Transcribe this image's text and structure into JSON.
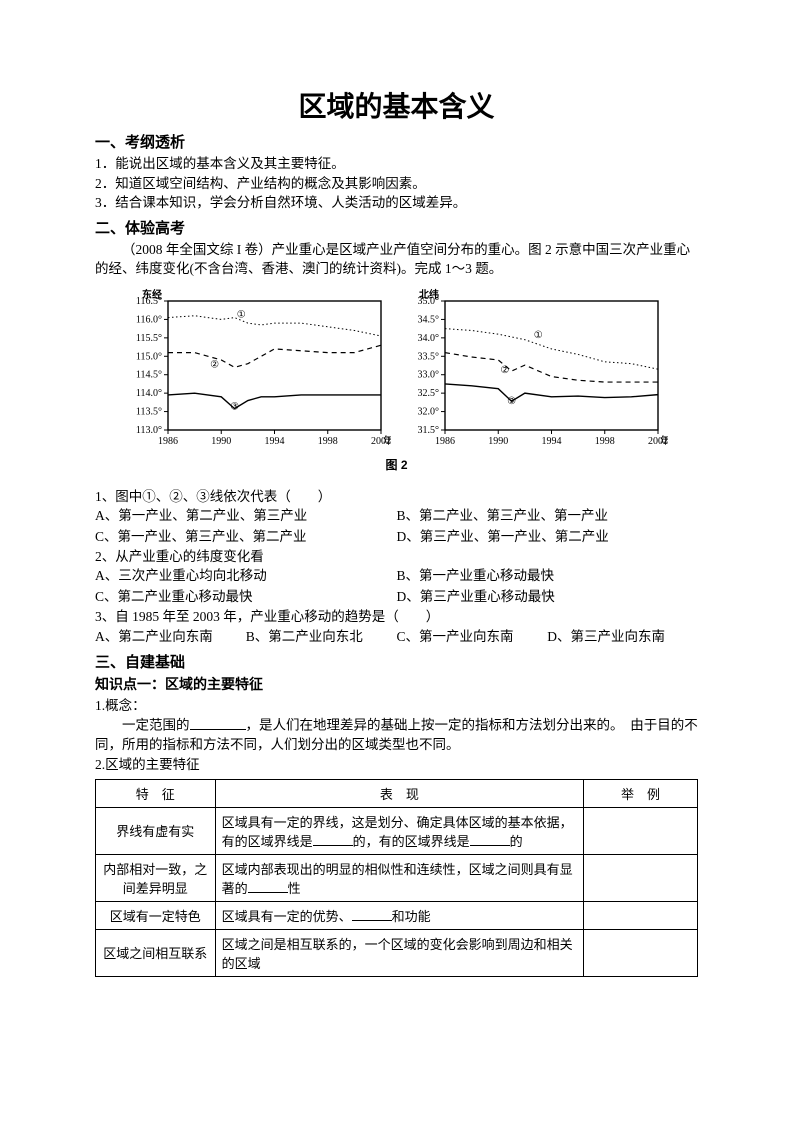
{
  "title": "区域的基本含义",
  "sections": {
    "s1": {
      "heading": "一、考纲透析",
      "items": [
        "1．能说出区域的基本含义及其主要特征。",
        "2．知道区域空间结构、产业结构的概念及其影响因素。",
        "3．结合课本知识，学会分析自然环境、人类活动的区域差异。"
      ]
    },
    "s2": {
      "heading": "二、体验高考",
      "intro": "（2008 年全国文综 I 卷）产业重心是区域产业产值空间分布的重心。图 2 示意中国三次产业重心的经、纬度变化(不含台湾、香港、澳门的统计资料)。完成 1～3 题。",
      "fig_caption": "图 2",
      "charts": {
        "left": {
          "ylabel": "东经",
          "y_ticks": [
            "116.5°",
            "116.0°",
            "115.5°",
            "115.0°",
            "114.5°",
            "114.0°",
            "113.5°",
            "113.0°"
          ],
          "ylim": [
            113.0,
            116.5
          ],
          "x_ticks": [
            "1986",
            "1990",
            "1994",
            "1998",
            "2002"
          ],
          "xlim": [
            1986,
            2002
          ],
          "xlabel": "年份",
          "axis_color": "#000000",
          "grid_color": "#dddddd",
          "label_fontsize": 10,
          "series": [
            {
              "name": "①",
              "style": "dotted",
              "stroke": "#000000",
              "width": 1,
              "data": [
                [
                  1986,
                  116.05
                ],
                [
                  1988,
                  116.1
                ],
                [
                  1990,
                  116.0
                ],
                [
                  1991,
                  116.05
                ],
                [
                  1992,
                  115.9
                ],
                [
                  1993,
                  115.85
                ],
                [
                  1994,
                  115.9
                ],
                [
                  1996,
                  115.9
                ],
                [
                  1998,
                  115.8
                ],
                [
                  2000,
                  115.7
                ],
                [
                  2002,
                  115.55
                ]
              ],
              "label_pos": [
                1991.5,
                116.05
              ]
            },
            {
              "name": "②",
              "style": "dashed",
              "stroke": "#000000",
              "width": 1.2,
              "data": [
                [
                  1986,
                  115.1
                ],
                [
                  1988,
                  115.1
                ],
                [
                  1990,
                  114.9
                ],
                [
                  1991,
                  114.7
                ],
                [
                  1992,
                  114.8
                ],
                [
                  1993,
                  115.0
                ],
                [
                  1994,
                  115.2
                ],
                [
                  1996,
                  115.15
                ],
                [
                  1998,
                  115.1
                ],
                [
                  2000,
                  115.1
                ],
                [
                  2002,
                  115.3
                ]
              ],
              "label_pos": [
                1989.5,
                114.7
              ]
            },
            {
              "name": "③",
              "style": "solid",
              "stroke": "#000000",
              "width": 1.4,
              "data": [
                [
                  1986,
                  113.95
                ],
                [
                  1988,
                  114.0
                ],
                [
                  1990,
                  113.9
                ],
                [
                  1991,
                  113.58
                ],
                [
                  1992,
                  113.8
                ],
                [
                  1993,
                  113.9
                ],
                [
                  1994,
                  113.9
                ],
                [
                  1996,
                  113.95
                ],
                [
                  1998,
                  113.95
                ],
                [
                  2000,
                  113.95
                ],
                [
                  2002,
                  113.95
                ]
              ],
              "label_pos": [
                1991,
                113.55
              ]
            }
          ]
        },
        "right": {
          "ylabel": "北纬",
          "y_ticks": [
            "35.0°",
            "34.5°",
            "34.0°",
            "33.5°",
            "33.0°",
            "32.5°",
            "32.0°",
            "31.5°"
          ],
          "ylim": [
            31.5,
            35.0
          ],
          "x_ticks": [
            "1986",
            "1990",
            "1994",
            "1998",
            "2002"
          ],
          "xlim": [
            1986,
            2002
          ],
          "xlabel": "年份",
          "axis_color": "#000000",
          "grid_color": "#dddddd",
          "label_fontsize": 10,
          "series": [
            {
              "name": "①",
              "style": "dotted",
              "stroke": "#000000",
              "width": 1,
              "data": [
                [
                  1986,
                  34.25
                ],
                [
                  1988,
                  34.2
                ],
                [
                  1990,
                  34.1
                ],
                [
                  1992,
                  33.95
                ],
                [
                  1994,
                  33.7
                ],
                [
                  1996,
                  33.55
                ],
                [
                  1998,
                  33.35
                ],
                [
                  2000,
                  33.3
                ],
                [
                  2002,
                  33.15
                ]
              ],
              "label_pos": [
                1993,
                34.0
              ]
            },
            {
              "name": "②",
              "style": "dashed",
              "stroke": "#000000",
              "width": 1.2,
              "data": [
                [
                  1986,
                  33.6
                ],
                [
                  1988,
                  33.48
                ],
                [
                  1990,
                  33.4
                ],
                [
                  1991,
                  33.1
                ],
                [
                  1992,
                  33.26
                ],
                [
                  1994,
                  32.95
                ],
                [
                  1996,
                  32.85
                ],
                [
                  1998,
                  32.8
                ],
                [
                  2000,
                  32.8
                ],
                [
                  2002,
                  32.8
                ]
              ],
              "label_pos": [
                1990.5,
                33.05
              ]
            },
            {
              "name": "③",
              "style": "solid",
              "stroke": "#000000",
              "width": 1.4,
              "data": [
                [
                  1986,
                  32.75
                ],
                [
                  1988,
                  32.7
                ],
                [
                  1990,
                  32.62
                ],
                [
                  1991,
                  32.28
                ],
                [
                  1992,
                  32.5
                ],
                [
                  1994,
                  32.4
                ],
                [
                  1996,
                  32.42
                ],
                [
                  1998,
                  32.38
                ],
                [
                  2000,
                  32.4
                ],
                [
                  2002,
                  32.46
                ]
              ],
              "label_pos": [
                1991,
                32.2
              ]
            }
          ]
        }
      },
      "questions": {
        "q1": {
          "stem": "1、图中①、②、③线依次代表（　　）",
          "opts": [
            "A、第一产业、第二产业、第三产业",
            "B、第二产业、第三产业、第一产业",
            "C、第一产业、第三产业、第二产业",
            "D、第三产业、第一产业、第二产业"
          ]
        },
        "q2": {
          "stem": "2、从产业重心的纬度变化看",
          "opts": [
            "A、三次产业重心均向北移动",
            "B、第一产业重心移动最快",
            "C、第二产业重心移动最快",
            "D、第三产业重心移动最快"
          ]
        },
        "q3": {
          "stem": "3、自 1985 年至 2003 年，产业重心移动的趋势是（　　）",
          "opts": [
            "A、第二产业向东南",
            "B、第二产业向东北",
            "C、第一产业向东南",
            "D、第三产业向东南"
          ]
        }
      }
    },
    "s3": {
      "heading": "三、自建基础",
      "kp1_heading": "知识点一：区域的主要特征",
      "concept_label": "1.概念：",
      "concept_pre": "一定范围的",
      "concept_post": "，是人们在地理差异的基础上按一定的指标和方法划分出来的。　由于目的不同，所用的指标和方法不同，人们划分出的区域类型也不同。",
      "feat_label": "2.区域的主要特征",
      "table": {
        "head": [
          "特　征",
          "表　现",
          "举　例"
        ],
        "rows": [
          {
            "c1": "界线有虚有实",
            "c2_pre": "区域具有一定的界线，这是划分、确定具体区域的基本依据，有的区域界线是",
            "c2_mid": "的，有的区域界线是",
            "c2_post": "的"
          },
          {
            "c1": "内部相对一致，之间差异明显",
            "c2_pre": "区域内部表现出的明显的相似性和连续性，区域之间则具有显著的",
            "c2_post": "性"
          },
          {
            "c1": "区域有一定特色",
            "c2_pre": "区域具有一定的优势、",
            "c2_post": "和功能"
          },
          {
            "c1": "区域之间相互联系",
            "c2_plain": "区域之间是相互联系的，一个区域的变化会影响到周边和相关的区域"
          }
        ]
      }
    }
  }
}
